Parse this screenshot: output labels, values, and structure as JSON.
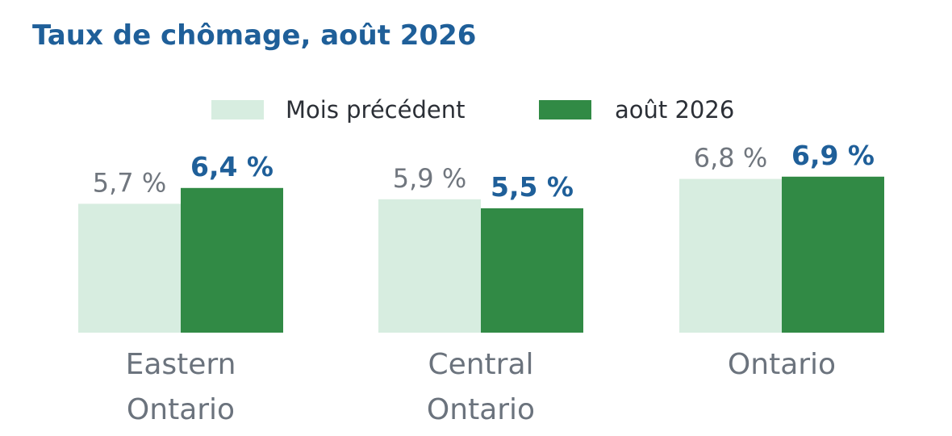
{
  "chart_data": {
    "type": "bar",
    "title": "Taux de chômage, août 2026",
    "categories": [
      [
        "Eastern",
        "Ontario"
      ],
      [
        "Central",
        "Ontario"
      ],
      [
        "Ontario"
      ]
    ],
    "series": [
      {
        "name": "Mois précédent",
        "color": "#d7ede0",
        "values": [
          5.7,
          5.9,
          6.8
        ],
        "labels": [
          "5,7 %",
          "5,9 %",
          "6,8 %"
        ]
      },
      {
        "name": "août 2026",
        "color": "#318a45",
        "values": [
          6.4,
          5.5,
          6.9
        ],
        "labels": [
          "6,4 %",
          "5,5 %",
          "6,9 %"
        ]
      }
    ],
    "ylim": [
      0,
      7.2
    ],
    "grid": false,
    "legend": "top-center",
    "colors": {
      "title": "#1f5f99",
      "current_label": "#1f5f99",
      "previous_label": "#70767e",
      "category_label": "#6b737d"
    }
  }
}
